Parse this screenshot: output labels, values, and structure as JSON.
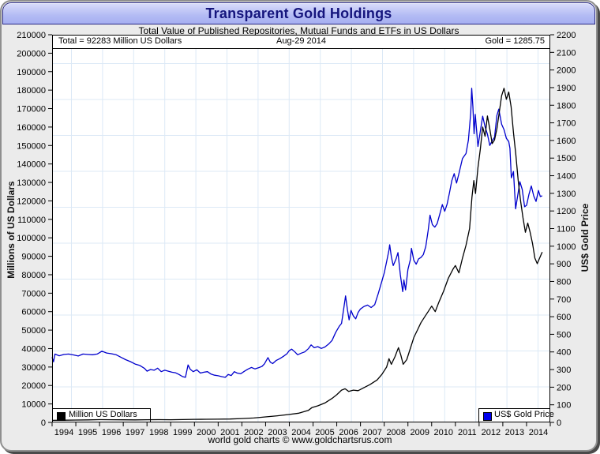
{
  "window": {
    "title": "Transparent Gold Holdings",
    "subtitle": "Total Value of Published Repositories, Mutual Funds and ETFs in US Dollars",
    "footer": "world gold charts © www.goldchartsrus.com"
  },
  "annotations": {
    "total": "Total = 92283 Million US Dollars",
    "date": "Aug-29  2014",
    "gold": "Gold = 1285.75"
  },
  "legend": {
    "left_label": "Million US Dollars",
    "right_label": "US$ Gold Price"
  },
  "colors": {
    "holdings_line": "#000000",
    "gold_line": "#0000cd",
    "legend_left_swatch": "#000000",
    "legend_right_swatch": "#0000ee",
    "grid": "#dce9f6",
    "axis": "#000000",
    "plot_bg": "#ffffff",
    "window_bg": "#ebebeb",
    "titlebar_text": "#15157d"
  },
  "chart_data": {
    "type": "line",
    "title": "Transparent Gold Holdings",
    "subtitle": "Total Value of Published Repositories, Mutual Funds and ETFs in US Dollars",
    "x_axis": {
      "min": 1994,
      "max": 2015,
      "year_labels": [
        1994,
        1995,
        1996,
        1997,
        1998,
        1999,
        2000,
        2001,
        2002,
        2003,
        2004,
        2005,
        2006,
        2007,
        2008,
        2009,
        2010,
        2011,
        2012,
        2013,
        2014
      ]
    },
    "left_axis": {
      "label": "Millions of US Dollars",
      "min": 0,
      "max": 210000,
      "step": 10000
    },
    "right_axis": {
      "label": "US$ Gold Price",
      "min": 0,
      "max": 2200,
      "step": 100
    },
    "grid": "on",
    "legend_position": "bottom-corners",
    "series": [
      {
        "name": "Million US Dollars",
        "axis": "left",
        "color": "#000000",
        "points": [
          [
            1994.0,
            1100
          ],
          [
            1994.5,
            1200
          ],
          [
            1995.0,
            1300
          ],
          [
            1995.5,
            1350
          ],
          [
            1996.0,
            1500
          ],
          [
            1996.5,
            1450
          ],
          [
            1997.0,
            1400
          ],
          [
            1997.5,
            1350
          ],
          [
            1998.0,
            1450
          ],
          [
            1998.5,
            1500
          ],
          [
            1999.0,
            1450
          ],
          [
            1999.5,
            1550
          ],
          [
            2000.0,
            1650
          ],
          [
            2000.5,
            1700
          ],
          [
            2001.0,
            1750
          ],
          [
            2001.5,
            1850
          ],
          [
            2002.0,
            2100
          ],
          [
            2002.5,
            2400
          ],
          [
            2003.0,
            3000
          ],
          [
            2003.5,
            3600
          ],
          [
            2004.0,
            4300
          ],
          [
            2004.4,
            5000
          ],
          [
            2004.8,
            6500
          ],
          [
            2004.95,
            8000
          ],
          [
            2005.2,
            9000
          ],
          [
            2005.5,
            10500
          ],
          [
            2005.8,
            13000
          ],
          [
            2006.0,
            15000
          ],
          [
            2006.2,
            17500
          ],
          [
            2006.35,
            18200
          ],
          [
            2006.5,
            16800
          ],
          [
            2006.7,
            17500
          ],
          [
            2006.9,
            17200
          ],
          [
            2007.1,
            18500
          ],
          [
            2007.4,
            20500
          ],
          [
            2007.7,
            23000
          ],
          [
            2007.9,
            26000
          ],
          [
            2008.1,
            30000
          ],
          [
            2008.2,
            34500
          ],
          [
            2008.3,
            31500
          ],
          [
            2008.45,
            35500
          ],
          [
            2008.6,
            40500
          ],
          [
            2008.7,
            36500
          ],
          [
            2008.8,
            31500
          ],
          [
            2008.95,
            34000
          ],
          [
            2009.1,
            40000
          ],
          [
            2009.25,
            46000
          ],
          [
            2009.4,
            50000
          ],
          [
            2009.55,
            54000
          ],
          [
            2009.7,
            57000
          ],
          [
            2009.85,
            60000
          ],
          [
            2010.0,
            63000
          ],
          [
            2010.15,
            60000
          ],
          [
            2010.3,
            65000
          ],
          [
            2010.5,
            71000
          ],
          [
            2010.7,
            78000
          ],
          [
            2010.9,
            83000
          ],
          [
            2011.0,
            85000
          ],
          [
            2011.15,
            81000
          ],
          [
            2011.3,
            89000
          ],
          [
            2011.45,
            96000
          ],
          [
            2011.6,
            105000
          ],
          [
            2011.7,
            122000
          ],
          [
            2011.78,
            131000
          ],
          [
            2011.85,
            124000
          ],
          [
            2011.95,
            138000
          ],
          [
            2012.05,
            148000
          ],
          [
            2012.15,
            160000
          ],
          [
            2012.25,
            155000
          ],
          [
            2012.35,
            166000
          ],
          [
            2012.45,
            159000
          ],
          [
            2012.55,
            151000
          ],
          [
            2012.65,
            153000
          ],
          [
            2012.75,
            159000
          ],
          [
            2012.85,
            168000
          ],
          [
            2012.95,
            177000
          ],
          [
            2013.05,
            181000
          ],
          [
            2013.15,
            175000
          ],
          [
            2013.25,
            179000
          ],
          [
            2013.35,
            171000
          ],
          [
            2013.45,
            157000
          ],
          [
            2013.55,
            145000
          ],
          [
            2013.65,
            131000
          ],
          [
            2013.75,
            120000
          ],
          [
            2013.85,
            111000
          ],
          [
            2013.95,
            103000
          ],
          [
            2014.05,
            108000
          ],
          [
            2014.15,
            103000
          ],
          [
            2014.25,
            97000
          ],
          [
            2014.35,
            89000
          ],
          [
            2014.45,
            86000
          ],
          [
            2014.55,
            89000
          ],
          [
            2014.66,
            92283
          ]
        ]
      },
      {
        "name": "US$ Gold Price",
        "axis": "right",
        "color": "#0000cd",
        "points": [
          [
            1994.0,
            370
          ],
          [
            1994.06,
            344
          ],
          [
            1994.12,
            388
          ],
          [
            1994.3,
            378
          ],
          [
            1994.5,
            386
          ],
          [
            1994.7,
            388
          ],
          [
            1994.9,
            383
          ],
          [
            1995.1,
            377
          ],
          [
            1995.3,
            388
          ],
          [
            1995.5,
            386
          ],
          [
            1995.7,
            384
          ],
          [
            1995.9,
            388
          ],
          [
            1996.1,
            404
          ],
          [
            1996.3,
            394
          ],
          [
            1996.5,
            390
          ],
          [
            1996.7,
            384
          ],
          [
            1996.9,
            370
          ],
          [
            1997.1,
            356
          ],
          [
            1997.3,
            345
          ],
          [
            1997.5,
            331
          ],
          [
            1997.7,
            323
          ],
          [
            1997.9,
            306
          ],
          [
            1998.0,
            291
          ],
          [
            1998.15,
            300
          ],
          [
            1998.3,
            296
          ],
          [
            1998.45,
            308
          ],
          [
            1998.6,
            288
          ],
          [
            1998.75,
            296
          ],
          [
            1998.9,
            291
          ],
          [
            1999.05,
            285
          ],
          [
            1999.2,
            282
          ],
          [
            1999.35,
            272
          ],
          [
            1999.5,
            260
          ],
          [
            1999.62,
            256
          ],
          [
            1999.73,
            326
          ],
          [
            1999.82,
            302
          ],
          [
            1999.95,
            288
          ],
          [
            2000.1,
            299
          ],
          [
            2000.25,
            280
          ],
          [
            2000.4,
            285
          ],
          [
            2000.55,
            288
          ],
          [
            2000.7,
            274
          ],
          [
            2000.85,
            268
          ],
          [
            2001.0,
            265
          ],
          [
            2001.15,
            260
          ],
          [
            2001.3,
            256
          ],
          [
            2001.42,
            272
          ],
          [
            2001.55,
            266
          ],
          [
            2001.68,
            288
          ],
          [
            2001.8,
            280
          ],
          [
            2001.95,
            276
          ],
          [
            2002.1,
            290
          ],
          [
            2002.25,
            302
          ],
          [
            2002.4,
            312
          ],
          [
            2002.55,
            304
          ],
          [
            2002.7,
            310
          ],
          [
            2002.85,
            318
          ],
          [
            2002.95,
            332
          ],
          [
            2003.1,
            368
          ],
          [
            2003.2,
            342
          ],
          [
            2003.3,
            334
          ],
          [
            2003.45,
            352
          ],
          [
            2003.6,
            362
          ],
          [
            2003.75,
            375
          ],
          [
            2003.9,
            390
          ],
          [
            2004.0,
            408
          ],
          [
            2004.1,
            416
          ],
          [
            2004.25,
            398
          ],
          [
            2004.35,
            384
          ],
          [
            2004.5,
            393
          ],
          [
            2004.65,
            400
          ],
          [
            2004.8,
            418
          ],
          [
            2004.92,
            440
          ],
          [
            2005.05,
            424
          ],
          [
            2005.2,
            430
          ],
          [
            2005.35,
            420
          ],
          [
            2005.5,
            428
          ],
          [
            2005.65,
            444
          ],
          [
            2005.8,
            465
          ],
          [
            2005.95,
            510
          ],
          [
            2006.1,
            545
          ],
          [
            2006.2,
            562
          ],
          [
            2006.3,
            652
          ],
          [
            2006.37,
            718
          ],
          [
            2006.45,
            640
          ],
          [
            2006.52,
            582
          ],
          [
            2006.6,
            636
          ],
          [
            2006.7,
            604
          ],
          [
            2006.8,
            588
          ],
          [
            2006.9,
            624
          ],
          [
            2007.0,
            644
          ],
          [
            2007.15,
            658
          ],
          [
            2007.3,
            666
          ],
          [
            2007.45,
            652
          ],
          [
            2007.6,
            668
          ],
          [
            2007.75,
            732
          ],
          [
            2007.88,
            792
          ],
          [
            2008.0,
            848
          ],
          [
            2008.1,
            912
          ],
          [
            2008.2,
            978
          ],
          [
            2008.23,
            1008
          ],
          [
            2008.3,
            940
          ],
          [
            2008.38,
            890
          ],
          [
            2008.5,
            928
          ],
          [
            2008.58,
            964
          ],
          [
            2008.68,
            838
          ],
          [
            2008.78,
            742
          ],
          [
            2008.83,
            808
          ],
          [
            2008.9,
            752
          ],
          [
            2009.0,
            868
          ],
          [
            2009.1,
            922
          ],
          [
            2009.15,
            988
          ],
          [
            2009.25,
            920
          ],
          [
            2009.35,
            898
          ],
          [
            2009.45,
            928
          ],
          [
            2009.55,
            936
          ],
          [
            2009.65,
            952
          ],
          [
            2009.75,
            998
          ],
          [
            2009.85,
            1088
          ],
          [
            2009.93,
            1176
          ],
          [
            2010.03,
            1122
          ],
          [
            2010.13,
            1108
          ],
          [
            2010.23,
            1128
          ],
          [
            2010.35,
            1186
          ],
          [
            2010.45,
            1236
          ],
          [
            2010.55,
            1198
          ],
          [
            2010.65,
            1238
          ],
          [
            2010.75,
            1302
          ],
          [
            2010.85,
            1372
          ],
          [
            2010.95,
            1412
          ],
          [
            2011.05,
            1358
          ],
          [
            2011.15,
            1412
          ],
          [
            2011.3,
            1498
          ],
          [
            2011.45,
            1526
          ],
          [
            2011.55,
            1602
          ],
          [
            2011.65,
            1758
          ],
          [
            2011.69,
            1896
          ],
          [
            2011.74,
            1792
          ],
          [
            2011.79,
            1638
          ],
          [
            2011.84,
            1748
          ],
          [
            2011.95,
            1566
          ],
          [
            2012.05,
            1652
          ],
          [
            2012.15,
            1738
          ],
          [
            2012.25,
            1678
          ],
          [
            2012.35,
            1636
          ],
          [
            2012.45,
            1572
          ],
          [
            2012.55,
            1598
          ],
          [
            2012.65,
            1618
          ],
          [
            2012.75,
            1742
          ],
          [
            2012.83,
            1778
          ],
          [
            2012.95,
            1692
          ],
          [
            2013.05,
            1662
          ],
          [
            2013.15,
            1612
          ],
          [
            2013.25,
            1594
          ],
          [
            2013.3,
            1556
          ],
          [
            2013.36,
            1388
          ],
          [
            2013.45,
            1424
          ],
          [
            2013.54,
            1212
          ],
          [
            2013.63,
            1288
          ],
          [
            2013.72,
            1366
          ],
          [
            2013.82,
            1322
          ],
          [
            2013.92,
            1224
          ],
          [
            2014.0,
            1232
          ],
          [
            2014.1,
            1294
          ],
          [
            2014.2,
            1342
          ],
          [
            2014.3,
            1286
          ],
          [
            2014.4,
            1254
          ],
          [
            2014.5,
            1316
          ],
          [
            2014.58,
            1282
          ],
          [
            2014.66,
            1285.75
          ]
        ]
      }
    ]
  }
}
